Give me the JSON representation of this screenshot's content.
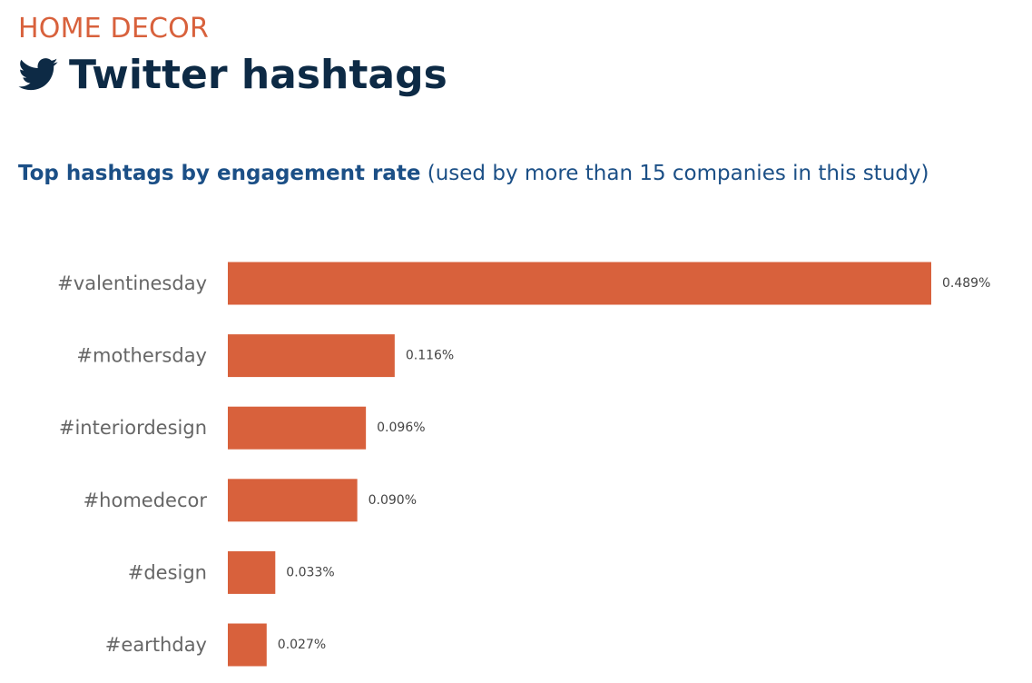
{
  "header": {
    "category": "HOME DECOR",
    "title": "Twitter hashtags",
    "subtitle_bold": "Top hashtags by engagement rate",
    "subtitle_rest": "(used by more than 15 companies in this study)"
  },
  "colors": {
    "accent": "#d8613c",
    "title": "#0d2a45",
    "subtitle": "#1b4f86",
    "tick": "#666666",
    "value_label": "#444444"
  },
  "chart_data": {
    "type": "bar",
    "orientation": "horizontal",
    "title": "Top hashtags by engagement rate (used by more than 15 companies in this study)",
    "xlabel": "",
    "ylabel": "",
    "unit": "%",
    "xlim": [
      0,
      0.489
    ],
    "grid": false,
    "legend": "none",
    "categories": [
      "#valentinesday",
      "#mothersday",
      "#interiordesign",
      "#homedecor",
      "#design",
      "#earthday"
    ],
    "values": [
      0.489,
      0.116,
      0.096,
      0.09,
      0.033,
      0.027
    ],
    "value_labels": [
      "0.489%",
      "0.116%",
      "0.096%",
      "0.090%",
      "0.033%",
      "0.027%"
    ]
  }
}
